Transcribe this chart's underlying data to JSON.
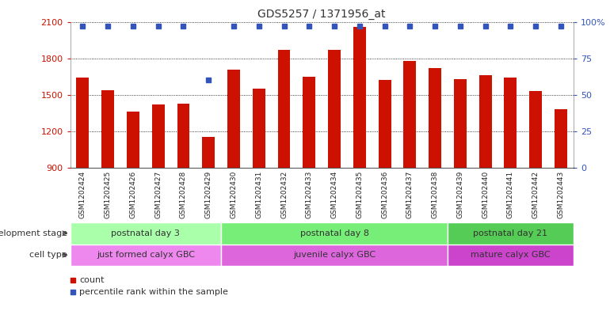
{
  "title": "GDS5257 / 1371956_at",
  "samples": [
    "GSM1202424",
    "GSM1202425",
    "GSM1202426",
    "GSM1202427",
    "GSM1202428",
    "GSM1202429",
    "GSM1202430",
    "GSM1202431",
    "GSM1202432",
    "GSM1202433",
    "GSM1202434",
    "GSM1202435",
    "GSM1202436",
    "GSM1202437",
    "GSM1202438",
    "GSM1202439",
    "GSM1202440",
    "GSM1202441",
    "GSM1202442",
    "GSM1202443"
  ],
  "counts": [
    1640,
    1540,
    1360,
    1420,
    1430,
    1155,
    1710,
    1550,
    1870,
    1650,
    1870,
    2060,
    1620,
    1780,
    1720,
    1630,
    1660,
    1640,
    1530,
    1380
  ],
  "percentile_ranks": [
    97,
    97,
    97,
    97,
    97,
    60,
    97,
    97,
    97,
    97,
    97,
    97,
    97,
    97,
    97,
    97,
    97,
    97,
    97,
    97
  ],
  "ylim_left": [
    900,
    2100
  ],
  "ylim_right": [
    0,
    100
  ],
  "yticks_left": [
    900,
    1200,
    1500,
    1800,
    2100
  ],
  "yticks_right": [
    0,
    25,
    50,
    75,
    100
  ],
  "bar_color": "#cc1100",
  "percentile_color": "#3355bb",
  "bar_width": 0.5,
  "groups": [
    {
      "label": "postnatal day 3",
      "start": 0,
      "end": 6,
      "color": "#aaffaa"
    },
    {
      "label": "postnatal day 8",
      "start": 6,
      "end": 15,
      "color": "#77ee77"
    },
    {
      "label": "postnatal day 21",
      "start": 15,
      "end": 20,
      "color": "#55cc55"
    }
  ],
  "cell_types": [
    {
      "label": "just formed calyx GBC",
      "start": 0,
      "end": 6,
      "color": "#ee88ee"
    },
    {
      "label": "juvenile calyx GBC",
      "start": 6,
      "end": 15,
      "color": "#dd66dd"
    },
    {
      "label": "mature calyx GBC",
      "start": 15,
      "end": 20,
      "color": "#cc44cc"
    }
  ],
  "dev_stage_label": "development stage",
  "cell_type_label": "cell type",
  "legend_count_label": "count",
  "legend_pct_label": "percentile rank within the sample",
  "background_color": "#ffffff",
  "plot_bg_color": "#ffffff",
  "xtick_bg_color": "#cccccc",
  "grid_color": "#000000",
  "tick_label_color_left": "#cc1100",
  "tick_label_color_right": "#3355bb"
}
